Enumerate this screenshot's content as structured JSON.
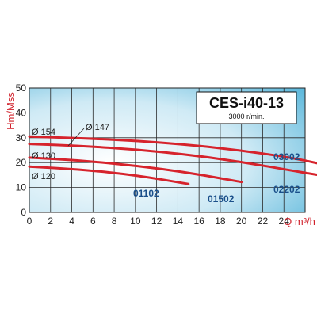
{
  "chart_data": {
    "type": "line",
    "title": "CES-i40-13",
    "subtitle": "3000 r/min.",
    "xlabel": "Q m³/h",
    "ylabel": "Hm/Mss",
    "xlim": [
      0,
      26
    ],
    "ylim": [
      0,
      50
    ],
    "x_ticks": [
      "0",
      "2",
      "4",
      "6",
      "8",
      "10",
      "12",
      "14",
      "16",
      "18",
      "20",
      "22",
      "24"
    ],
    "y_ticks": [
      "0",
      "10",
      "20",
      "30",
      "40",
      "50"
    ],
    "grid": true,
    "series": [
      {
        "name": "03002",
        "diameter": "Ø 154",
        "points": [
          [
            0,
            30.5
          ],
          [
            5,
            29.8
          ],
          [
            10,
            28.8
          ],
          [
            15,
            27.2
          ],
          [
            20,
            24.9
          ],
          [
            25,
            21.8
          ],
          [
            29,
            18.0
          ]
        ]
      },
      {
        "name": "02202",
        "diameter": "Ø 147",
        "points": [
          [
            0,
            27.5
          ],
          [
            5,
            26.7
          ],
          [
            10,
            25.3
          ],
          [
            15,
            23.2
          ],
          [
            20,
            20.3
          ],
          [
            25,
            16.6
          ],
          [
            29,
            13.8
          ]
        ]
      },
      {
        "name": "01502",
        "diameter": "Ø 130",
        "points": [
          [
            0,
            22.0
          ],
          [
            5,
            20.8
          ],
          [
            10,
            18.8
          ],
          [
            15,
            16.0
          ],
          [
            20,
            12.2
          ]
        ]
      },
      {
        "name": "01102",
        "diameter": "Ø 120",
        "points": [
          [
            0,
            18.4
          ],
          [
            5,
            17.2
          ],
          [
            10,
            15.0
          ],
          [
            15,
            11.4
          ]
        ]
      }
    ],
    "line_color": "#d6232c"
  }
}
